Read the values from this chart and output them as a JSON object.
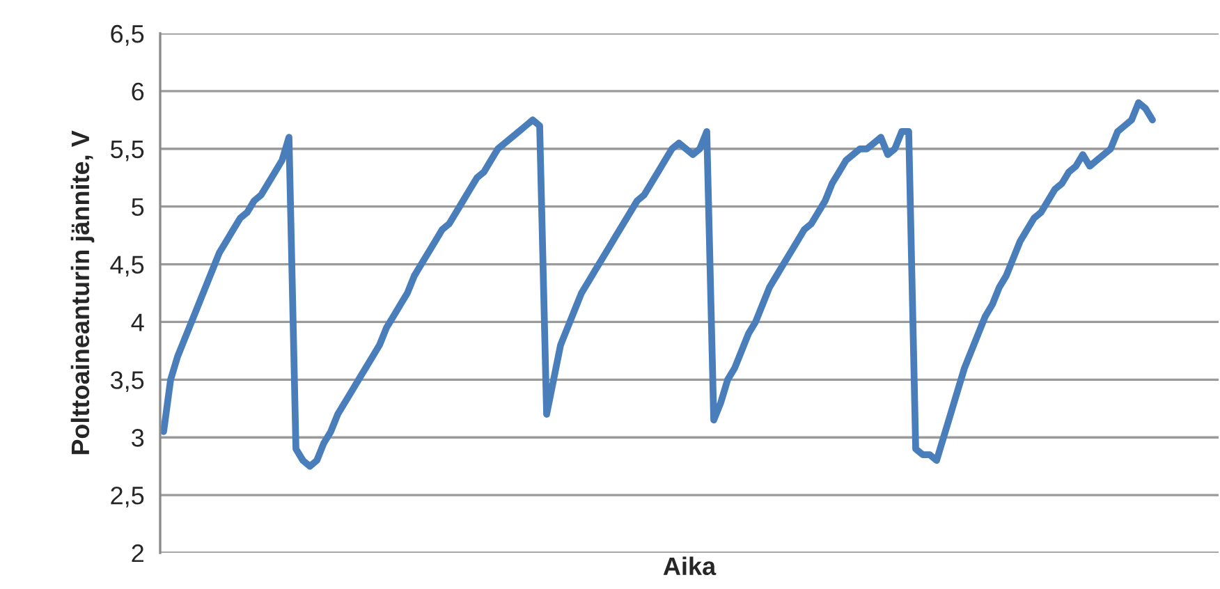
{
  "chart_data": {
    "type": "line",
    "xlabel": "Aika",
    "ylabel": "Polttoaineanturin jännite, V",
    "categories": [
      null,
      null,
      null,
      null,
      null,
      null,
      null,
      null,
      null,
      null,
      null,
      null,
      null,
      null,
      null,
      null,
      null,
      null,
      null,
      null,
      null,
      null,
      null,
      null,
      null,
      null,
      null,
      null,
      null,
      null,
      null,
      null,
      null,
      null,
      null,
      null,
      null,
      null,
      null,
      null,
      null,
      null,
      null,
      null,
      null,
      null,
      null,
      null,
      null,
      null,
      null,
      null,
      null,
      null,
      null,
      null,
      null,
      null,
      null,
      null,
      null,
      null,
      null,
      null,
      null,
      null,
      null,
      null,
      null,
      null,
      null,
      null,
      null,
      null,
      null,
      null,
      null,
      null,
      null,
      null,
      null,
      null,
      null,
      null,
      null,
      null,
      null,
      null,
      null,
      null,
      null,
      null,
      null,
      null,
      null,
      null,
      null,
      null,
      null,
      null,
      null,
      null,
      null,
      null,
      null,
      null,
      null,
      null,
      null,
      null,
      null,
      null,
      null,
      null,
      null,
      null,
      null,
      null,
      null,
      null,
      null,
      null,
      null,
      null,
      null,
      null,
      null,
      null,
      null,
      null,
      null,
      null,
      null,
      null,
      null,
      null,
      null,
      null,
      null,
      null,
      null,
      null,
      null,
      null,
      null,
      null,
      null,
      null,
      null,
      null,
      null,
      null
    ],
    "series": [
      {
        "color": "#4a7ebb",
        "values": [
          3.05,
          3.5,
          3.7,
          3.85,
          4.0,
          4.15,
          4.3,
          4.45,
          4.6,
          4.7,
          4.8,
          4.9,
          4.95,
          5.05,
          5.1,
          5.2,
          5.3,
          5.4,
          5.6,
          2.9,
          2.8,
          2.75,
          2.8,
          2.95,
          3.05,
          3.2,
          3.3,
          3.4,
          3.5,
          3.6,
          3.7,
          3.8,
          3.95,
          4.05,
          4.15,
          4.25,
          4.4,
          4.5,
          4.6,
          4.7,
          4.8,
          4.85,
          4.95,
          5.05,
          5.15,
          5.25,
          5.3,
          5.4,
          5.5,
          5.55,
          5.6,
          5.65,
          5.7,
          5.75,
          5.7,
          3.2,
          3.5,
          3.8,
          3.95,
          4.1,
          4.25,
          4.35,
          4.45,
          4.55,
          4.65,
          4.75,
          4.85,
          4.95,
          5.05,
          5.1,
          5.2,
          5.3,
          5.4,
          5.5,
          5.55,
          5.5,
          5.45,
          5.5,
          5.65,
          3.15,
          3.3,
          3.5,
          3.6,
          3.75,
          3.9,
          4.0,
          4.15,
          4.3,
          4.4,
          4.5,
          4.6,
          4.7,
          4.8,
          4.85,
          4.95,
          5.05,
          5.2,
          5.3,
          5.4,
          5.45,
          5.5,
          5.5,
          5.55,
          5.6,
          5.45,
          5.5,
          5.65,
          5.65,
          2.9,
          2.85,
          2.85,
          2.8,
          3.0,
          3.2,
          3.4,
          3.6,
          3.75,
          3.9,
          4.05,
          4.15,
          4.3,
          4.4,
          4.55,
          4.7,
          4.8,
          4.9,
          4.95,
          5.05,
          5.15,
          5.2,
          5.3,
          5.35,
          5.45,
          5.35,
          5.4,
          5.45,
          5.5,
          5.65,
          5.7,
          5.75,
          5.9,
          5.85,
          5.75,
          null,
          null,
          null,
          null,
          null,
          null,
          null,
          null,
          null
        ]
      }
    ],
    "ylim": [
      2,
      6.5
    ],
    "yticks": [
      {
        "value": 2,
        "label": "2"
      },
      {
        "value": 2.5,
        "label": "2,5"
      },
      {
        "value": 3,
        "label": "3"
      },
      {
        "value": 3.5,
        "label": "3,5"
      },
      {
        "value": 4,
        "label": "4"
      },
      {
        "value": 4.5,
        "label": "4,5"
      },
      {
        "value": 5,
        "label": "5"
      },
      {
        "value": 5.5,
        "label": "5,5"
      },
      {
        "value": 6,
        "label": "6"
      },
      {
        "value": 6.5,
        "label": "6,5"
      }
    ],
    "grid": "y",
    "tick_labels": "y"
  }
}
